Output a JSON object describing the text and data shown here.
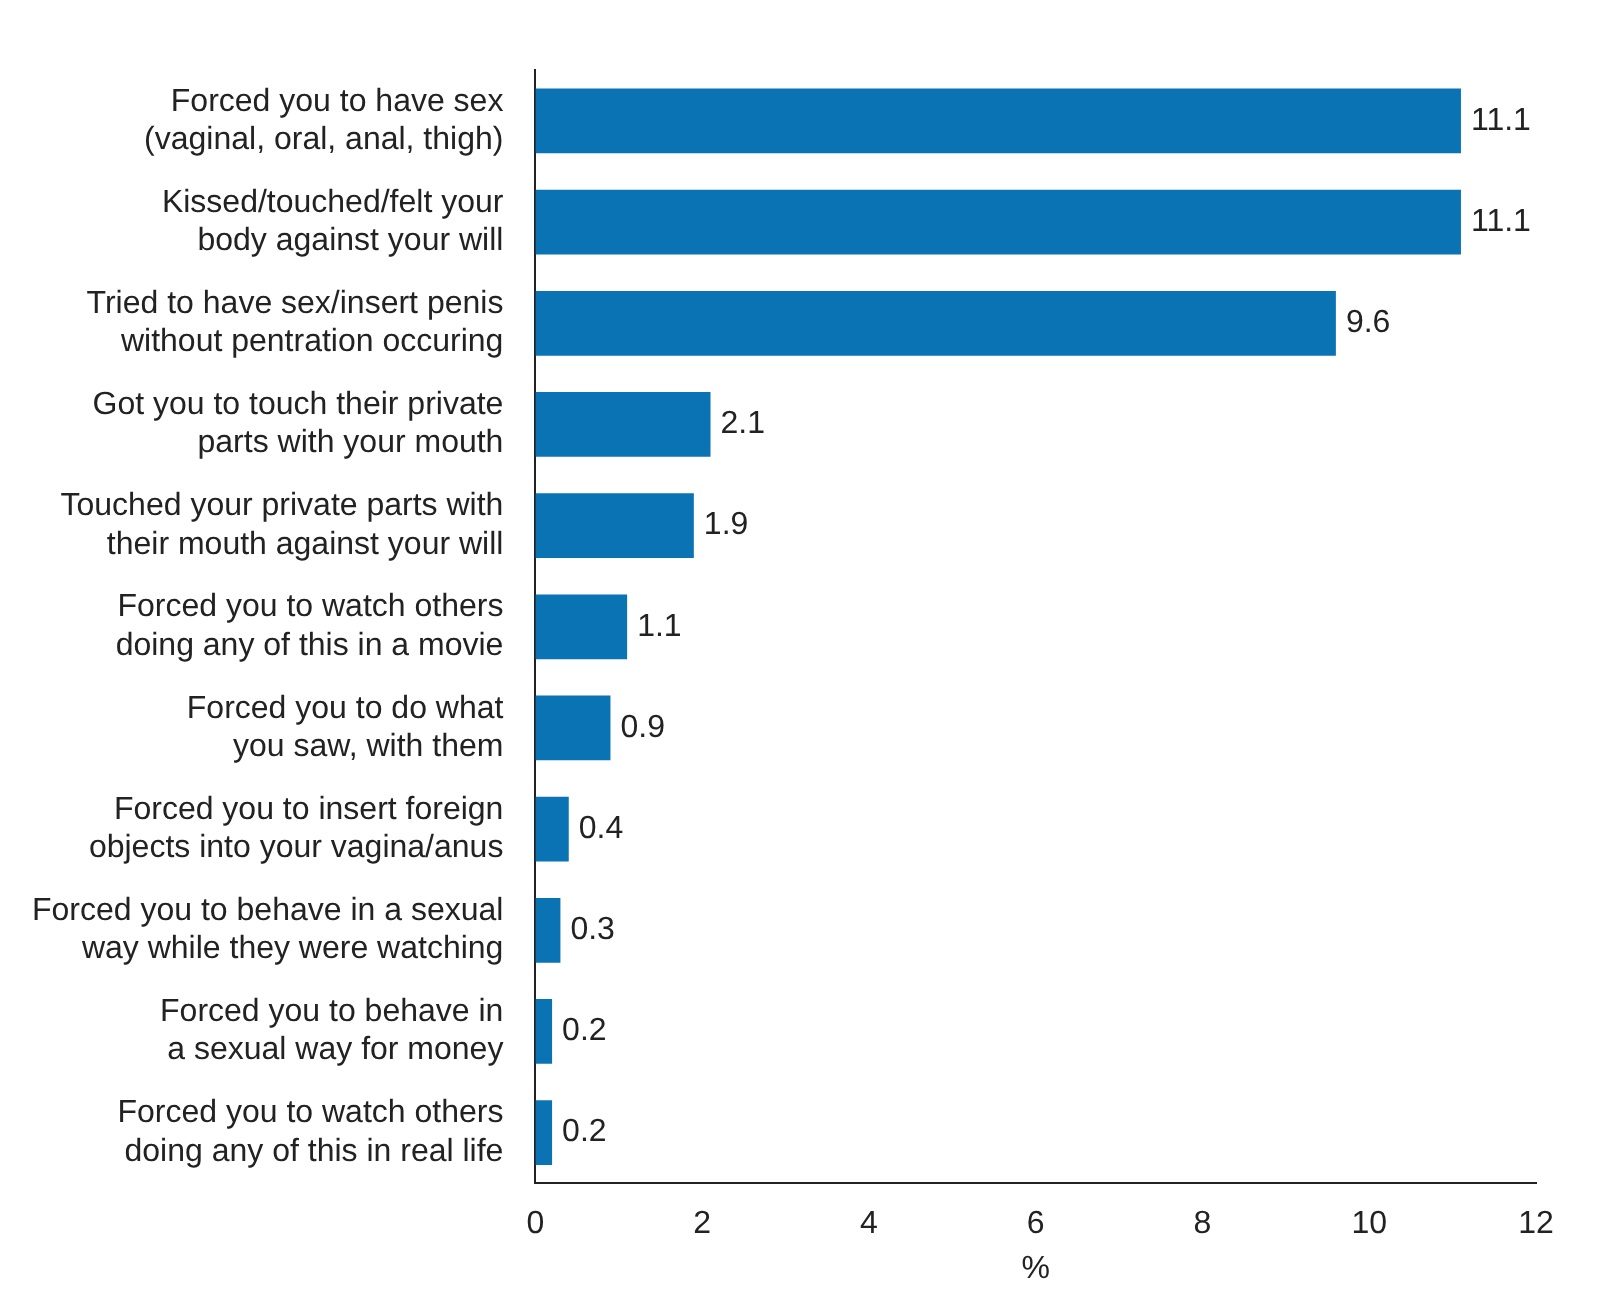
{
  "chart_data": {
    "type": "bar",
    "orientation": "horizontal",
    "xlabel": "%",
    "categories": [
      "Forced you to have sex\n(vaginal, oral, anal, thigh)",
      "Kissed/touched/felt your\nbody against your will",
      "Tried to have sex/insert penis\nwithout pentration occuring",
      "Got you to touch their private\nparts with your mouth",
      "Touched your private parts with\ntheir mouth against your will",
      "Forced you to watch others\ndoing any of this in a movie",
      "Forced you to do what\nyou saw, with them",
      "Forced you to insert foreign\nobjects into your vagina/anus",
      "Forced you to behave in a sexual\nway while they were watching",
      "Forced you to behave in\na sexual way for money",
      "Forced you to watch others\ndoing any of this in real life"
    ],
    "values": [
      11.1,
      11.1,
      9.6,
      2.1,
      1.9,
      1.1,
      0.9,
      0.4,
      0.3,
      0.2,
      0.2
    ],
    "color": "#0a73b4",
    "xlim": [
      0,
      12
    ],
    "xticks": [
      0,
      2,
      4,
      6,
      8,
      10,
      12
    ],
    "data_labels": true,
    "grid": false,
    "legend": false
  }
}
